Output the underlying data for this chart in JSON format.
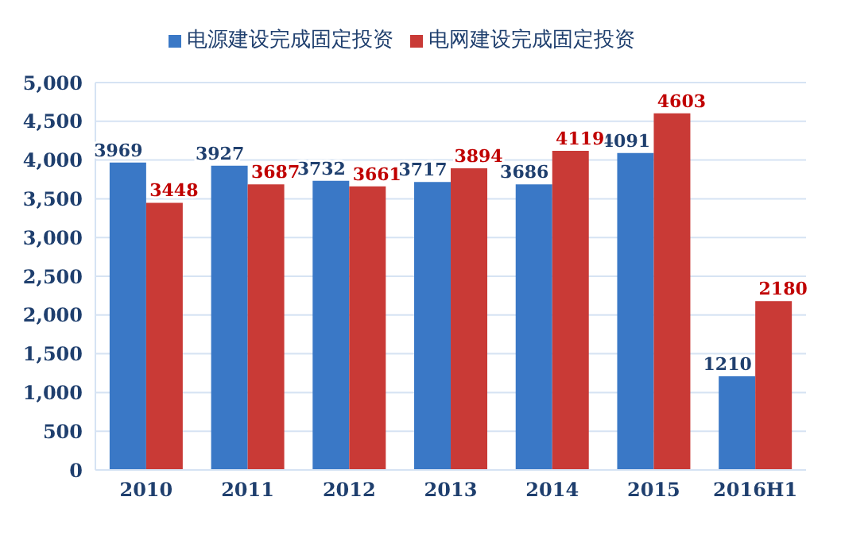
{
  "chart_data": {
    "type": "bar",
    "categories": [
      "2010",
      "2011",
      "2012",
      "2013",
      "2014",
      "2015",
      "2016H1"
    ],
    "series": [
      {
        "name": "电源建设完成固定投资",
        "color": "#3a78c6",
        "values": [
          3969,
          3927,
          3732,
          3717,
          3686,
          4091,
          1210
        ]
      },
      {
        "name": "电网建设完成固定投资",
        "color": "#c93a36",
        "values": [
          3448,
          3687,
          3661,
          3894,
          4119,
          4603,
          2180
        ]
      }
    ],
    "ylim": [
      0,
      5000
    ],
    "yticks": [
      {
        "value": 0,
        "label": "0"
      },
      {
        "value": 500,
        "label": "500"
      },
      {
        "value": 1000,
        "label": "1,000"
      },
      {
        "value": 1500,
        "label": "1,500"
      },
      {
        "value": 2000,
        "label": "2,000"
      },
      {
        "value": 2500,
        "label": "2,500"
      },
      {
        "value": 3000,
        "label": "3,000"
      },
      {
        "value": 3500,
        "label": "3,500"
      },
      {
        "value": 4000,
        "label": "4,000"
      },
      {
        "value": 4500,
        "label": "4,500"
      },
      {
        "value": 5000,
        "label": "5,000"
      }
    ],
    "grid": "y",
    "legend": "top",
    "data_labels": true
  }
}
